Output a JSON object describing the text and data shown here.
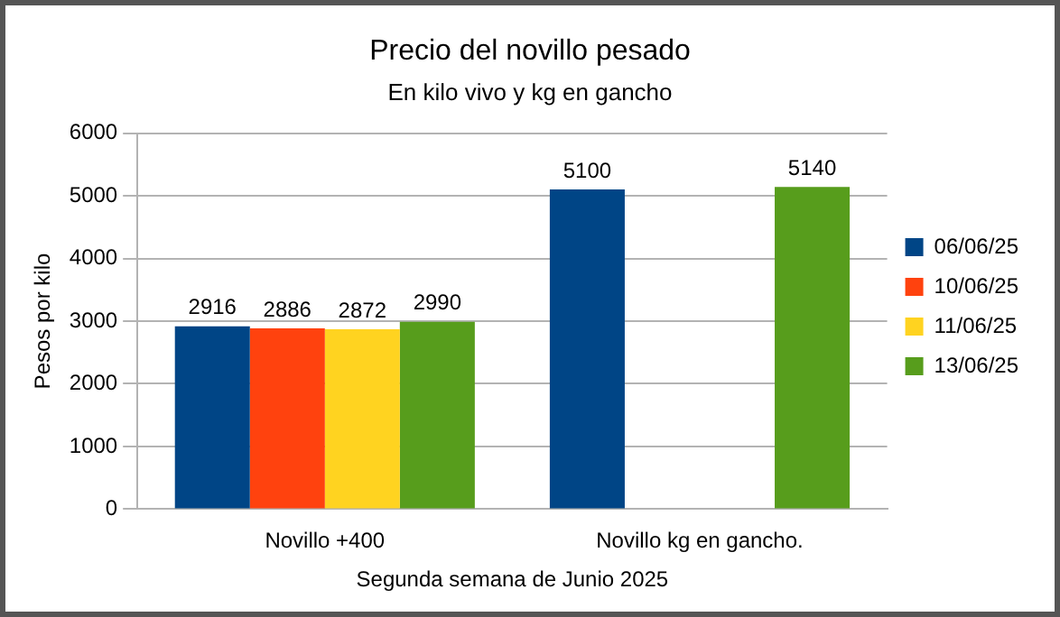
{
  "chart_data": {
    "type": "bar",
    "title": "Precio del novillo pesado",
    "subtitle": "En kilo vivo y kg en gancho",
    "xlabel": "Segunda semana de Junio 2025",
    "ylabel": "Pesos por kilo",
    "categories": [
      "Novillo +400",
      "Novillo kg en gancho."
    ],
    "series": [
      {
        "name": "06/06/25",
        "color": "#004586",
        "values": [
          2916,
          5100
        ]
      },
      {
        "name": "10/06/25",
        "color": "#ff420e",
        "values": [
          2886,
          null
        ]
      },
      {
        "name": "11/06/25",
        "color": "#ffd320",
        "values": [
          2872,
          null
        ]
      },
      {
        "name": "13/06/25",
        "color": "#579d1c",
        "values": [
          2990,
          5140
        ]
      }
    ],
    "ylim": [
      0,
      6000
    ],
    "yticks": [
      0,
      1000,
      2000,
      3000,
      4000,
      5000,
      6000
    ],
    "grid": "y",
    "legend": "right",
    "data_labels": true
  }
}
